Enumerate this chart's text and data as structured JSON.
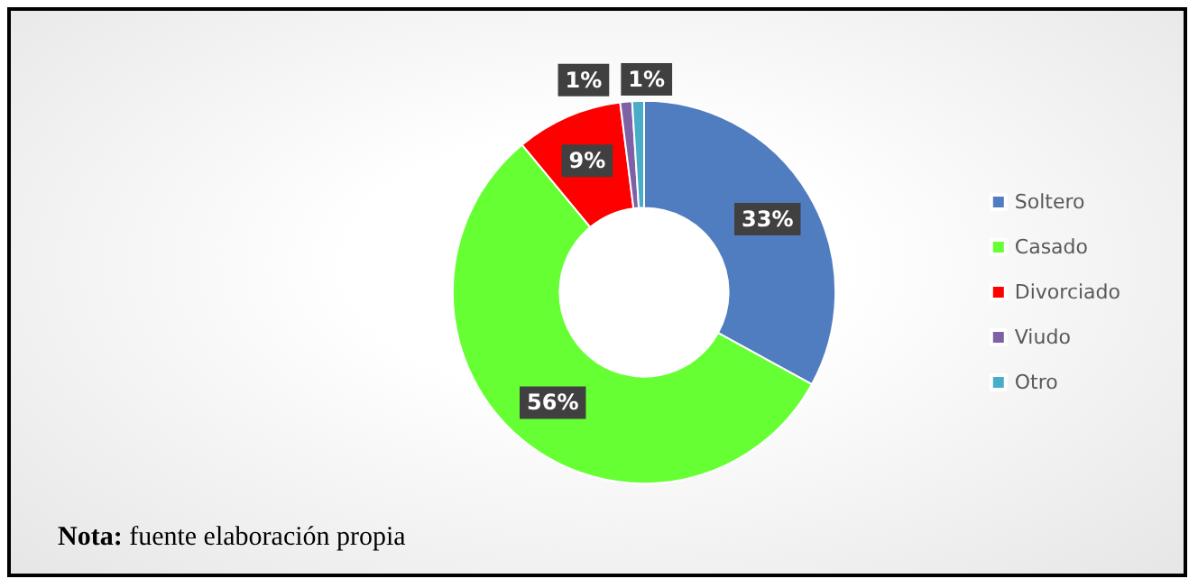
{
  "chart_data": {
    "type": "donut",
    "categories": [
      "Soltero",
      "Casado",
      "Divorciado",
      "Viudo",
      "Otro"
    ],
    "values": [
      33,
      56,
      9,
      1,
      1
    ],
    "colors": [
      "#4f7dc0",
      "#66ff33",
      "#ff0000",
      "#7f62a6",
      "#4aadc8"
    ],
    "value_labels": [
      "33%",
      "56%",
      "9%",
      "1%",
      "1%"
    ],
    "legend": "right",
    "annotations": [
      "Nota: fuente elaboración propia"
    ]
  }
}
